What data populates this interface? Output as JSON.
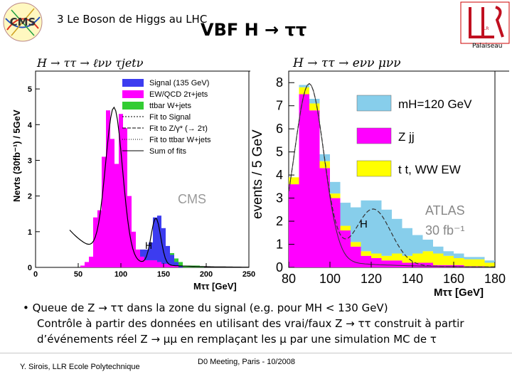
{
  "header": {
    "section": "3  Le Boson de Higgs au LHC",
    "title": "VBF H → ττ",
    "llr_label": "Palaiseau",
    "cms_logo_text": "CMS",
    "llr_logo_text": "LLR"
  },
  "colors": {
    "signal": "#3c3cf0",
    "ewqcd": "#ff00ff",
    "ttbar": "#33cc33",
    "atlas_higgs": "#87ceeb",
    "atlas_zjj": "#ff00ff",
    "atlas_tt": "#ffff00"
  },
  "chart_data": [
    {
      "type": "bar",
      "title": "H → ττ → ℓνν τjetν",
      "xlabel": "Mττ [GeV]",
      "ylabel": "Nevts (30fb⁻¹) / 5GeV",
      "xlim": [
        0,
        250
      ],
      "ylim": [
        0,
        5.5
      ],
      "xticks": [
        "0",
        "50",
        "100",
        "150",
        "200",
        "250"
      ],
      "yticks": [
        "0",
        "1",
        "2",
        "3",
        "4",
        "5"
      ],
      "bin_width": 5,
      "watermark": "CMS",
      "peak_label": "H",
      "legend": [
        "Signal (135 GeV)",
        "EW/QCD 2τ+jets",
        "ttbar W+jets",
        "Fit to Signal",
        "Fit to Z/γ* (→ 2τ)",
        "Fit to ttbar W+jets",
        "Sum of fits"
      ],
      "x": [
        55,
        60,
        65,
        70,
        75,
        80,
        85,
        90,
        95,
        100,
        105,
        110,
        115,
        120,
        125,
        130,
        135,
        140,
        145,
        150,
        155,
        160,
        165,
        170,
        175,
        180,
        185,
        190,
        195,
        200,
        205,
        210
      ],
      "series": [
        {
          "name": "EW/QCD 2τ+jets",
          "values": [
            0.05,
            0.15,
            0.3,
            1.4,
            1.6,
            3.1,
            4.4,
            3.6,
            2.9,
            4.3,
            3.9,
            2.0,
            1.0,
            0.5,
            0.3,
            0.2,
            0.2,
            0.2,
            0.15,
            0.1,
            0.1,
            0.05,
            0.05,
            0,
            0,
            0,
            0,
            0,
            0,
            0,
            0,
            0
          ]
        },
        {
          "name": "Signal (135 GeV)",
          "values": [
            0,
            0,
            0,
            0,
            0,
            0,
            0,
            0,
            0,
            0,
            0,
            0,
            0,
            0,
            0.2,
            0.3,
            0.5,
            1.2,
            1.3,
            1.0,
            0.5,
            0.3,
            0.1,
            0.05,
            0,
            0,
            0,
            0,
            0,
            0,
            0,
            0
          ]
        },
        {
          "name": "ttbar W+jets",
          "values": [
            0,
            0,
            0,
            0,
            0,
            0,
            0,
            0,
            0,
            0,
            0,
            0,
            0,
            0,
            0,
            0,
            0,
            0,
            0,
            0,
            0,
            0.05,
            0.1,
            0.1,
            0.05,
            0.05,
            0.05,
            0.05,
            0.03,
            0,
            0,
            0
          ]
        }
      ]
    },
    {
      "type": "bar",
      "title": "H → ττ → eνν μνν",
      "xlabel": "Mττ [GeV]",
      "ylabel": "events / 5 GeV",
      "xlim": [
        80,
        180
      ],
      "ylim": [
        0,
        8.5
      ],
      "xticks": [
        "80",
        "100",
        "120",
        "140",
        "160",
        "180"
      ],
      "yticks": [
        "0",
        "1",
        "2",
        "3",
        "4",
        "5",
        "6",
        "7",
        "8"
      ],
      "bin_width": 5,
      "watermark_lines": [
        "ATLAS",
        "30 fb⁻¹"
      ],
      "peak_label": "H",
      "legend": [
        "mH=120 GeV",
        "Z jj",
        "t t, WW EW"
      ],
      "x": [
        82.5,
        87.5,
        92.5,
        97.5,
        102.5,
        107.5,
        112.5,
        117.5,
        122.5,
        127.5,
        132.5,
        137.5,
        142.5,
        147.5,
        152.5,
        157.5,
        162.5,
        167.5,
        172.5,
        177.5
      ],
      "series": [
        {
          "name": "Z jj",
          "values": [
            3.6,
            7.5,
            6.8,
            4.3,
            3.0,
            1.6,
            0.9,
            0.5,
            0.4,
            0.3,
            0.3,
            0.2,
            0.2,
            0.2,
            0.1,
            0.1,
            0.1,
            0.05,
            0.05,
            0
          ]
        },
        {
          "name": "t t, WW EW",
          "values": [
            0.3,
            0.3,
            0.3,
            0.3,
            0.2,
            0.2,
            0.2,
            0.2,
            0.2,
            0.2,
            0.3,
            0.3,
            0.4,
            0.5,
            0.5,
            0.4,
            0.3,
            0.3,
            0.3,
            0.2
          ]
        },
        {
          "name": "mH=120 GeV",
          "values": [
            0,
            0.1,
            0.2,
            0.3,
            0.5,
            1.0,
            1.5,
            2.2,
            2.3,
            2.0,
            1.5,
            1.2,
            0.8,
            0.5,
            0.3,
            0.2,
            0.2,
            0.1,
            0.1,
            0.1
          ]
        }
      ]
    }
  ],
  "bullet": {
    "line1": "• Queue de Z → ττ dans la zone du signal (e.g. pour MH < 130 GeV)",
    "line2": "Contrôle à partir des données en utilisant des vrai/faux Z → ττ construit à partir",
    "line3": "d’événements réel Z → μμ en remplaçant les μ par une simulation MC de τ"
  },
  "footer": {
    "author": "Y. Sirois, LLR Ecole Polytechnique",
    "meeting": "D0 Meeting, Paris - 10/2008"
  }
}
